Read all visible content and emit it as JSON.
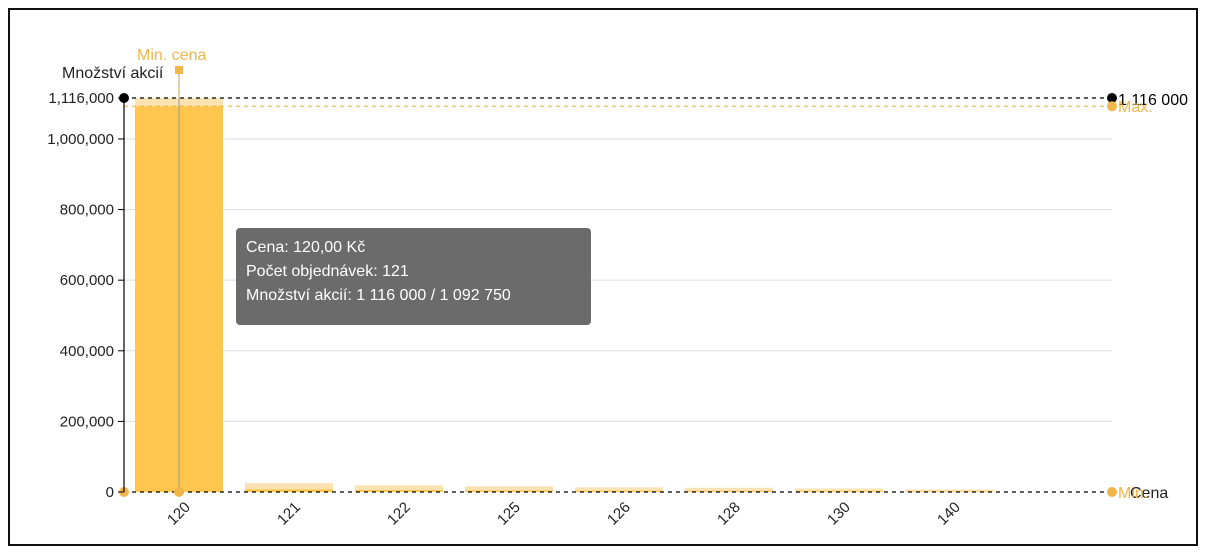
{
  "chart_data": {
    "type": "bar",
    "categories": [
      "120",
      "121",
      "122",
      "125",
      "126",
      "128",
      "130",
      "140"
    ],
    "series": [
      {
        "values": [
          1092750,
          7500,
          5500,
          4500,
          3500,
          3000,
          2500,
          1500
        ]
      },
      {
        "values": [
          1116000,
          25000,
          19000,
          16000,
          13000,
          12000,
          10000,
          7000
        ]
      }
    ],
    "ylabel": "Množství akcií",
    "xlabel": "Cena",
    "ylim": [
      0,
      1116000
    ],
    "yticks": [
      "0",
      "200,000",
      "400,000",
      "600,000",
      "800,000",
      "1,000,000",
      "1,116,000"
    ],
    "ytick_values": [
      0,
      200000,
      400000,
      600000,
      800000,
      1000000,
      1116000
    ],
    "grid": true,
    "reference_lines": {
      "max_total": {
        "value": 1116000,
        "label": "1 116 000"
      },
      "max": {
        "value": 1092750,
        "label": "Max."
      },
      "min": {
        "value": 0,
        "label": "Min."
      },
      "min_price": {
        "category": "120",
        "label": "Min. cena"
      }
    },
    "tooltip": {
      "category": "120",
      "lines": [
        "Cena: 120,00 Kč",
        "Počet objednávek: 121",
        "Množství akcií: 1 116 000 / 1 092 750"
      ]
    },
    "colors": {
      "bar": "#ffc64d",
      "bar_light": "#fbe2b2",
      "reference": "#f0b64a",
      "axis": "#000000",
      "grid": "#dddddd"
    }
  }
}
